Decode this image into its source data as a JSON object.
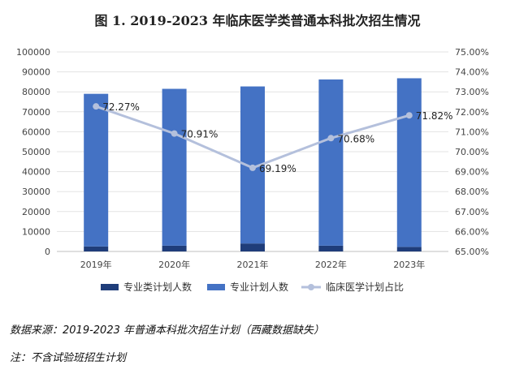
{
  "chart_data": {
    "type": "bar",
    "title": "图 1. 2019-2023 年临床医学类普通本科批次招生情况",
    "categories": [
      "2019年",
      "2020年",
      "2021年",
      "2022年",
      "2023年"
    ],
    "series": [
      {
        "name": "专业类计划人数",
        "type": "bar",
        "axis": "left",
        "stacked": true,
        "color": "#1f3d7a",
        "values": [
          2500,
          2900,
          4000,
          2900,
          2300
        ]
      },
      {
        "name": "专业计划人数",
        "type": "bar",
        "axis": "left",
        "stacked": true,
        "color": "#4472c4",
        "values": [
          76500,
          78600,
          78700,
          83300,
          84500
        ]
      },
      {
        "name": "临床医学计划占比",
        "type": "line",
        "axis": "right",
        "color": "#b4c0dc",
        "values": [
          72.27,
          70.91,
          69.19,
          70.68,
          71.82
        ],
        "labels": [
          "72.27%",
          "70.91%",
          "69.19%",
          "70.68%",
          "71.82%"
        ]
      }
    ],
    "ylim": [
      0,
      100000
    ],
    "y_ticks": [
      "0",
      "10000",
      "20000",
      "30000",
      "40000",
      "50000",
      "60000",
      "70000",
      "80000",
      "90000",
      "100000"
    ],
    "y2lim": [
      65,
      75
    ],
    "y2_ticks": [
      "65.00%",
      "66.00%",
      "67.00%",
      "68.00%",
      "69.00%",
      "70.00%",
      "71.00%",
      "72.00%",
      "73.00%",
      "74.00%",
      "75.00%"
    ],
    "grid": true,
    "legend_position": "bottom"
  },
  "notes": {
    "source": "数据来源：2019-2023 年普通本科批次招生计划（西藏数据缺失）",
    "footnote": "注：不含试验班招生计划"
  }
}
